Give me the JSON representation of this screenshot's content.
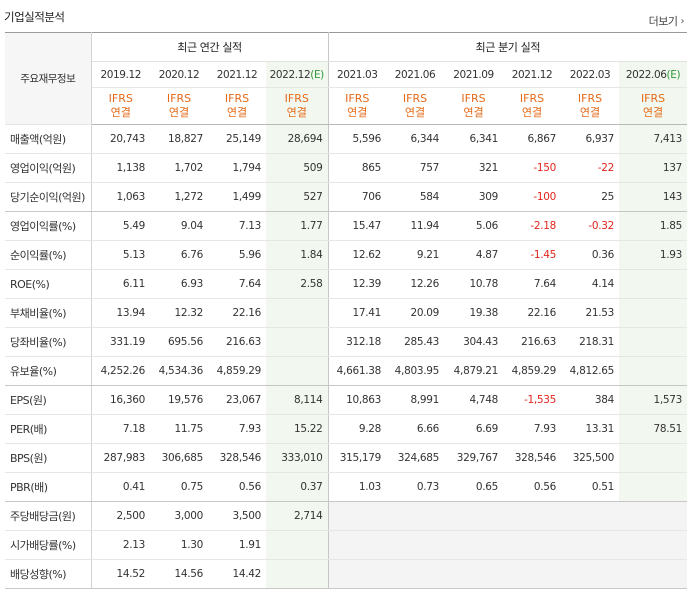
{
  "section": {
    "title": "기업실적분석",
    "more_label": "더보기",
    "more_icon": "chevron-right"
  },
  "header": {
    "row_label": "주요재무정보",
    "annual_group": "최근 연간 실적",
    "quarterly_group": "최근 분기 실적",
    "annual_periods": [
      "2019.12",
      "2020.12",
      "2021.12",
      "2022.12"
    ],
    "annual_estimate_mark": "(E)",
    "quarterly_periods": [
      "2021.03",
      "2021.06",
      "2021.09",
      "2021.12",
      "2022.03",
      "2022.06"
    ],
    "quarterly_estimate_mark": "(E)",
    "accounting_top": "IFRS",
    "accounting_bottom": "연결"
  },
  "colors": {
    "negative": "#e3251c",
    "ifrs": "#e56a18",
    "estimate_mark": "#2d9a3a",
    "estimate_bg": "#f2f8ef"
  },
  "rows": [
    {
      "label": "매출액(억원)",
      "annual": [
        "20,743",
        "18,827",
        "25,149",
        "28,694"
      ],
      "quarterly": [
        "5,596",
        "6,344",
        "6,341",
        "6,867",
        "6,937",
        "7,413"
      ]
    },
    {
      "label": "영업이익(억원)",
      "annual": [
        "1,138",
        "1,702",
        "1,794",
        "509"
      ],
      "quarterly": [
        "865",
        "757",
        "321",
        "-150",
        "-22",
        "137"
      ]
    },
    {
      "label": "당기순이익(억원)",
      "annual": [
        "1,063",
        "1,272",
        "1,499",
        "527"
      ],
      "quarterly": [
        "706",
        "584",
        "309",
        "-100",
        "25",
        "143"
      ]
    },
    {
      "label": "영업이익률(%)",
      "annual": [
        "5.49",
        "9.04",
        "7.13",
        "1.77"
      ],
      "quarterly": [
        "15.47",
        "11.94",
        "5.06",
        "-2.18",
        "-0.32",
        "1.85"
      ]
    },
    {
      "label": "순이익률(%)",
      "annual": [
        "5.13",
        "6.76",
        "5.96",
        "1.84"
      ],
      "quarterly": [
        "12.62",
        "9.21",
        "4.87",
        "-1.45",
        "0.36",
        "1.93"
      ]
    },
    {
      "label": "ROE(%)",
      "annual": [
        "6.11",
        "6.93",
        "7.64",
        "2.58"
      ],
      "quarterly": [
        "12.39",
        "12.26",
        "10.78",
        "7.64",
        "4.14",
        ""
      ]
    },
    {
      "label": "부채비율(%)",
      "annual": [
        "13.94",
        "12.32",
        "22.16",
        ""
      ],
      "quarterly": [
        "17.41",
        "20.09",
        "19.38",
        "22.16",
        "21.53",
        ""
      ]
    },
    {
      "label": "당좌비율(%)",
      "annual": [
        "331.19",
        "695.56",
        "216.63",
        ""
      ],
      "quarterly": [
        "312.18",
        "285.43",
        "304.43",
        "216.63",
        "218.31",
        ""
      ]
    },
    {
      "label": "유보율(%)",
      "annual": [
        "4,252.26",
        "4,534.36",
        "4,859.29",
        ""
      ],
      "quarterly": [
        "4,661.38",
        "4,803.95",
        "4,879.21",
        "4,859.29",
        "4,812.65",
        ""
      ]
    },
    {
      "label": "EPS(원)",
      "annual": [
        "16,360",
        "19,576",
        "23,067",
        "8,114"
      ],
      "quarterly": [
        "10,863",
        "8,991",
        "4,748",
        "-1,535",
        "384",
        "1,573"
      ]
    },
    {
      "label": "PER(배)",
      "annual": [
        "7.18",
        "11.75",
        "7.93",
        "15.22"
      ],
      "quarterly": [
        "9.28",
        "6.66",
        "6.69",
        "7.93",
        "13.31",
        "78.51"
      ]
    },
    {
      "label": "BPS(원)",
      "annual": [
        "287,983",
        "306,685",
        "328,546",
        "333,010"
      ],
      "quarterly": [
        "315,179",
        "324,685",
        "329,767",
        "328,546",
        "325,500",
        ""
      ]
    },
    {
      "label": "PBR(배)",
      "annual": [
        "0.41",
        "0.75",
        "0.56",
        "0.37"
      ],
      "quarterly": [
        "1.03",
        "0.73",
        "0.65",
        "0.56",
        "0.51",
        ""
      ]
    },
    {
      "label": "주당배당금(원)",
      "annual": [
        "2,500",
        "3,000",
        "3,500",
        "2,714"
      ],
      "quarterly": [
        "",
        "",
        "",
        "",
        "",
        ""
      ]
    },
    {
      "label": "시가배당률(%)",
      "annual": [
        "2.13",
        "1.30",
        "1.91",
        ""
      ],
      "quarterly": [
        "",
        "",
        "",
        "",
        "",
        ""
      ]
    },
    {
      "label": "배당성향(%)",
      "annual": [
        "14.52",
        "14.56",
        "14.42",
        ""
      ],
      "quarterly": [
        "",
        "",
        "",
        "",
        "",
        ""
      ]
    }
  ]
}
